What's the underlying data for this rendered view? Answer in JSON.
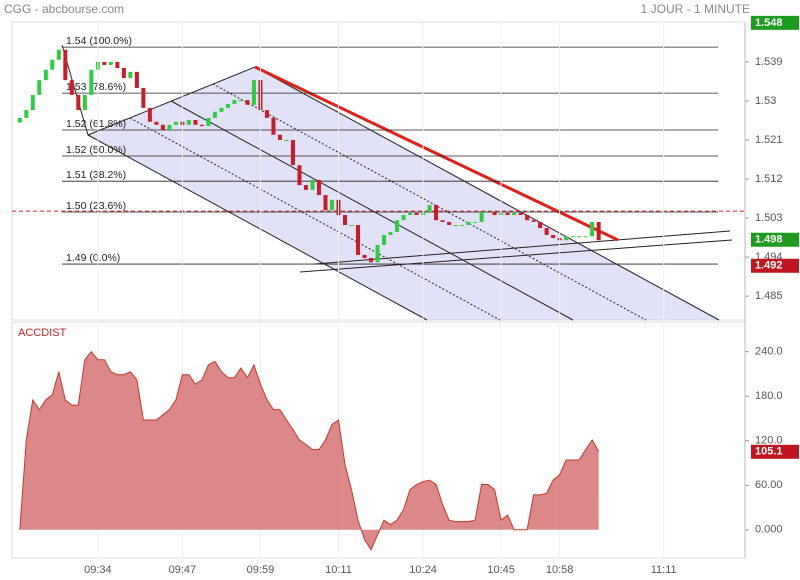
{
  "header": {
    "title": "CGG - abcbourse.com",
    "timeframe": "1 JOUR - 1 MINUTE"
  },
  "chart_data": [
    {
      "type": "candlestick",
      "x": [
        0,
        1,
        2,
        3,
        4,
        5,
        6,
        7,
        8,
        9,
        10,
        11,
        12,
        13,
        14,
        15,
        16,
        17,
        18,
        19,
        20,
        21,
        22,
        23,
        24,
        25,
        26,
        27,
        28,
        29,
        30,
        31,
        32,
        33,
        34,
        35,
        36,
        37,
        38,
        39,
        40,
        41,
        42,
        43,
        44,
        45,
        46,
        47,
        48,
        49,
        50,
        51,
        52,
        53,
        54,
        55,
        56,
        57,
        58,
        59,
        60,
        61,
        62,
        63,
        64,
        65,
        66,
        67,
        68,
        69,
        70,
        71,
        72,
        73,
        74,
        75,
        76,
        77,
        78,
        79,
        80,
        81,
        82,
        83,
        84,
        85,
        86,
        87,
        88,
        89
      ],
      "open": [
        1.525,
        1.5261,
        1.5279,
        1.5314,
        1.5348,
        1.5372,
        1.5395,
        1.5418,
        1.5348,
        1.5314,
        1.5279,
        1.5314,
        1.5372,
        1.539,
        1.5383,
        1.539,
        1.5376,
        1.5353,
        1.5367,
        1.533,
        1.5284,
        1.5252,
        1.5245,
        1.5233,
        1.5245,
        1.5252,
        1.5245,
        1.5256,
        1.5245,
        1.5242,
        1.5261,
        1.5275,
        1.5284,
        1.5293,
        1.5302,
        1.5302,
        1.5291,
        1.5348,
        1.5279,
        1.5261,
        1.5222,
        1.521,
        1.521,
        1.5152,
        1.5106,
        1.5095,
        1.5118,
        1.5083,
        1.5048,
        1.5072,
        1.5037,
        1.5014,
        1.5014,
        1.4945,
        1.4938,
        1.4928,
        1.4968,
        1.4991,
        1.4998,
        1.5025,
        1.5037,
        1.5042,
        1.5037,
        1.5044,
        1.506,
        1.5025,
        1.5021,
        1.5014,
        1.5014,
        1.5014,
        1.5021,
        1.5021,
        1.5044,
        1.5044,
        1.5037,
        1.5042,
        1.5037,
        1.5042,
        1.5037,
        1.5025,
        1.5021,
        1.5007,
        1.4991,
        1.4984,
        1.4979,
        1.4988,
        1.4988,
        1.4988,
        1.4988,
        1.5021
      ],
      "close": [
        1.5261,
        1.5279,
        1.5314,
        1.5348,
        1.5372,
        1.5395,
        1.5418,
        1.5348,
        1.5314,
        1.5279,
        1.5314,
        1.5372,
        1.539,
        1.5383,
        1.539,
        1.5376,
        1.5353,
        1.5367,
        1.533,
        1.5284,
        1.5252,
        1.5245,
        1.5233,
        1.5245,
        1.5252,
        1.5245,
        1.5256,
        1.5245,
        1.5242,
        1.5261,
        1.5275,
        1.5284,
        1.5293,
        1.5302,
        1.5302,
        1.5291,
        1.5348,
        1.5279,
        1.5261,
        1.5222,
        1.521,
        1.521,
        1.5152,
        1.5106,
        1.5095,
        1.5118,
        1.5083,
        1.5048,
        1.5072,
        1.5037,
        1.5014,
        1.5014,
        1.4945,
        1.4938,
        1.4928,
        1.4968,
        1.4991,
        1.4998,
        1.5025,
        1.5037,
        1.5042,
        1.5037,
        1.5044,
        1.506,
        1.5025,
        1.5021,
        1.5014,
        1.5014,
        1.5014,
        1.5021,
        1.5021,
        1.5044,
        1.5044,
        1.5037,
        1.5042,
        1.5037,
        1.5042,
        1.5037,
        1.5025,
        1.5021,
        1.5007,
        1.4991,
        1.4984,
        1.4979,
        1.4988,
        1.4988,
        1.4988,
        1.4988,
        1.5021,
        1.4979
      ],
      "up_color": "#2ecc40",
      "down_color": "#cc1a2a",
      "xlim": [
        -1.2,
        111.5
      ],
      "ylim": [
        1.4795,
        1.5482
      ],
      "yticks": [
        1.539,
        1.53,
        1.521,
        1.512,
        1.503,
        1.494,
        1.485
      ],
      "reference_price": 1.5046,
      "fibonacci": [
        {
          "value": 1.5424,
          "label": "1.54  (100.0%)"
        },
        {
          "value": 1.5318,
          "label": "1.53  (78.6%)"
        },
        {
          "value": 1.5233,
          "label": "1.52  (61.8%)"
        },
        {
          "value": 1.5173,
          "label": "1.52  (50.0%)"
        },
        {
          "value": 1.5115,
          "label": "1.51  (38.2%)"
        },
        {
          "value": 1.5044,
          "label": "1.50  (23.6%)"
        },
        {
          "value": 1.4924,
          "label": "1.49  (0.0%)"
        }
      ],
      "price_labels": [
        {
          "value": 1.548,
          "label": "1.548",
          "color": "#1e9a1e"
        },
        {
          "value": 1.498,
          "label": "1.498",
          "color": "#1e9a1e"
        },
        {
          "value": 1.492,
          "label": "1.492",
          "color": "#c0141e"
        }
      ]
    },
    {
      "type": "area",
      "title": "ACCDIST",
      "color": "#d46a6a",
      "line_color": "#c0392b",
      "x": [
        0,
        1,
        2,
        3,
        4,
        5,
        6,
        7,
        8,
        9,
        10,
        11,
        12,
        13,
        14,
        15,
        16,
        17,
        18,
        19,
        20,
        21,
        22,
        23,
        24,
        25,
        26,
        27,
        28,
        29,
        30,
        31,
        32,
        33,
        34,
        35,
        36,
        37,
        38,
        39,
        40,
        41,
        42,
        43,
        44,
        45,
        46,
        47,
        48,
        49,
        50,
        51,
        52,
        53,
        54,
        55,
        56,
        57,
        58,
        59,
        60,
        61,
        62,
        63,
        64,
        65,
        66,
        67,
        68,
        69,
        70,
        71,
        72,
        73,
        74,
        75,
        76,
        77,
        78,
        79,
        80,
        81,
        82,
        83,
        84,
        85,
        86,
        87,
        88,
        89
      ],
      "values": [
        0,
        121,
        175,
        162,
        175,
        182,
        213,
        175,
        168,
        168,
        229,
        240,
        229,
        229,
        213,
        209,
        209,
        213,
        202,
        148,
        148,
        148,
        155,
        162,
        175,
        209,
        209,
        196,
        202,
        222,
        227,
        213,
        205,
        205,
        218,
        205,
        222,
        196,
        175,
        162,
        162,
        148,
        135,
        121,
        115,
        108,
        108,
        121,
        142,
        148,
        88,
        54,
        13,
        -13,
        -27,
        -7,
        13,
        7,
        13,
        27,
        54,
        61,
        65,
        67,
        61,
        34,
        13,
        11,
        11,
        11,
        13,
        61,
        61,
        54,
        13,
        20,
        0,
        0,
        0,
        47,
        47,
        49,
        67,
        74,
        94,
        94,
        94,
        108,
        121,
        105.1
      ],
      "label_color": "#c0141e",
      "xlim": [
        -1.2,
        111.5
      ],
      "xticks": [
        {
          "value": 12,
          "label": "09:34"
        },
        {
          "value": 25,
          "label": "09:47"
        },
        {
          "value": 37,
          "label": "09:59"
        },
        {
          "value": 49,
          "label": "10:11"
        },
        {
          "value": 62,
          "label": "10:24"
        },
        {
          "value": 74,
          "label": "10:45"
        },
        {
          "value": 83,
          "label": "10:58"
        },
        {
          "value": 99,
          "label": "11:11"
        }
      ],
      "grid": true,
      "ylim": [
        -38,
        280
      ],
      "yticks": [
        {
          "value": 0,
          "label": "0.000"
        },
        {
          "value": 60,
          "label": "60.00"
        },
        {
          "value": 120,
          "label": "120.0"
        },
        {
          "value": 180,
          "label": "180.0"
        },
        {
          "value": 240,
          "label": "240.0"
        }
      ]
    }
  ]
}
